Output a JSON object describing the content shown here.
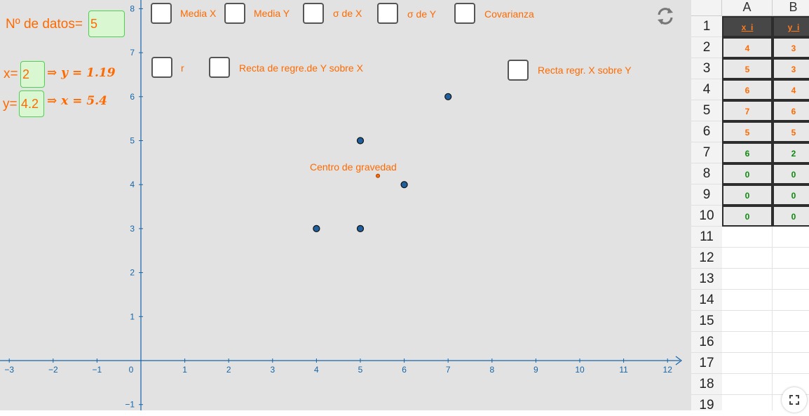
{
  "inputs": {
    "n_label": "Nº de datos=",
    "n_value": "5",
    "x_label": "x=",
    "x_value": "2",
    "x_result": "⇒ y = 1.19",
    "y_label": "y=",
    "y_value": "4.2",
    "y_result": "⇒ x = 5.4"
  },
  "checkboxes": {
    "media_x": "Media X",
    "media_y": "Media Y",
    "sigma_x": "σ de X",
    "sigma_y": "σ de Y",
    "covarianza": "Covarianza",
    "r": "r",
    "recta_yx": "Recta de regre.de Y sobre X",
    "recta_xy": "Recta regr. X sobre Y"
  },
  "graph": {
    "x_ticks": [
      "−3",
      "−2",
      "−1",
      "0",
      "1",
      "2",
      "3",
      "4",
      "5",
      "6",
      "7",
      "8",
      "9",
      "10",
      "11",
      "12"
    ],
    "y_ticks": [
      "−1",
      "1",
      "2",
      "3",
      "4",
      "5",
      "6",
      "7",
      "8"
    ],
    "points": [
      [
        4,
        3
      ],
      [
        5,
        3
      ],
      [
        5,
        5
      ],
      [
        6,
        4
      ],
      [
        7,
        6
      ]
    ],
    "centroid": {
      "x": 5.4,
      "y": 4.2,
      "label": "Centro de gravedad"
    },
    "colors": {
      "axis": "#1565a8",
      "point": "#1f5f9e",
      "accent": "#ff6a00",
      "centroid": "#a33a00"
    }
  },
  "spreadsheet": {
    "columns": [
      "A",
      "B"
    ],
    "row_numbers": [
      "1",
      "2",
      "3",
      "4",
      "5",
      "6",
      "7",
      "8",
      "9",
      "10",
      "11",
      "12",
      "13",
      "14",
      "15",
      "16",
      "17",
      "18",
      "19"
    ],
    "headers": [
      "x_i",
      "y_i"
    ],
    "rows": [
      {
        "a": "4",
        "b": "3",
        "color": "orange"
      },
      {
        "a": "5",
        "b": "3",
        "color": "orange"
      },
      {
        "a": "6",
        "b": "4",
        "color": "orange"
      },
      {
        "a": "7",
        "b": "6",
        "color": "orange"
      },
      {
        "a": "5",
        "b": "5",
        "color": "orange"
      },
      {
        "a": "6",
        "b": "2",
        "color": "green"
      },
      {
        "a": "0",
        "b": "0",
        "color": "green"
      },
      {
        "a": "0",
        "b": "0",
        "color": "green"
      },
      {
        "a": "0",
        "b": "0",
        "color": "green"
      }
    ]
  },
  "icons": {
    "reset": "reset-icon",
    "fullscreen": "fullscreen-icon"
  }
}
